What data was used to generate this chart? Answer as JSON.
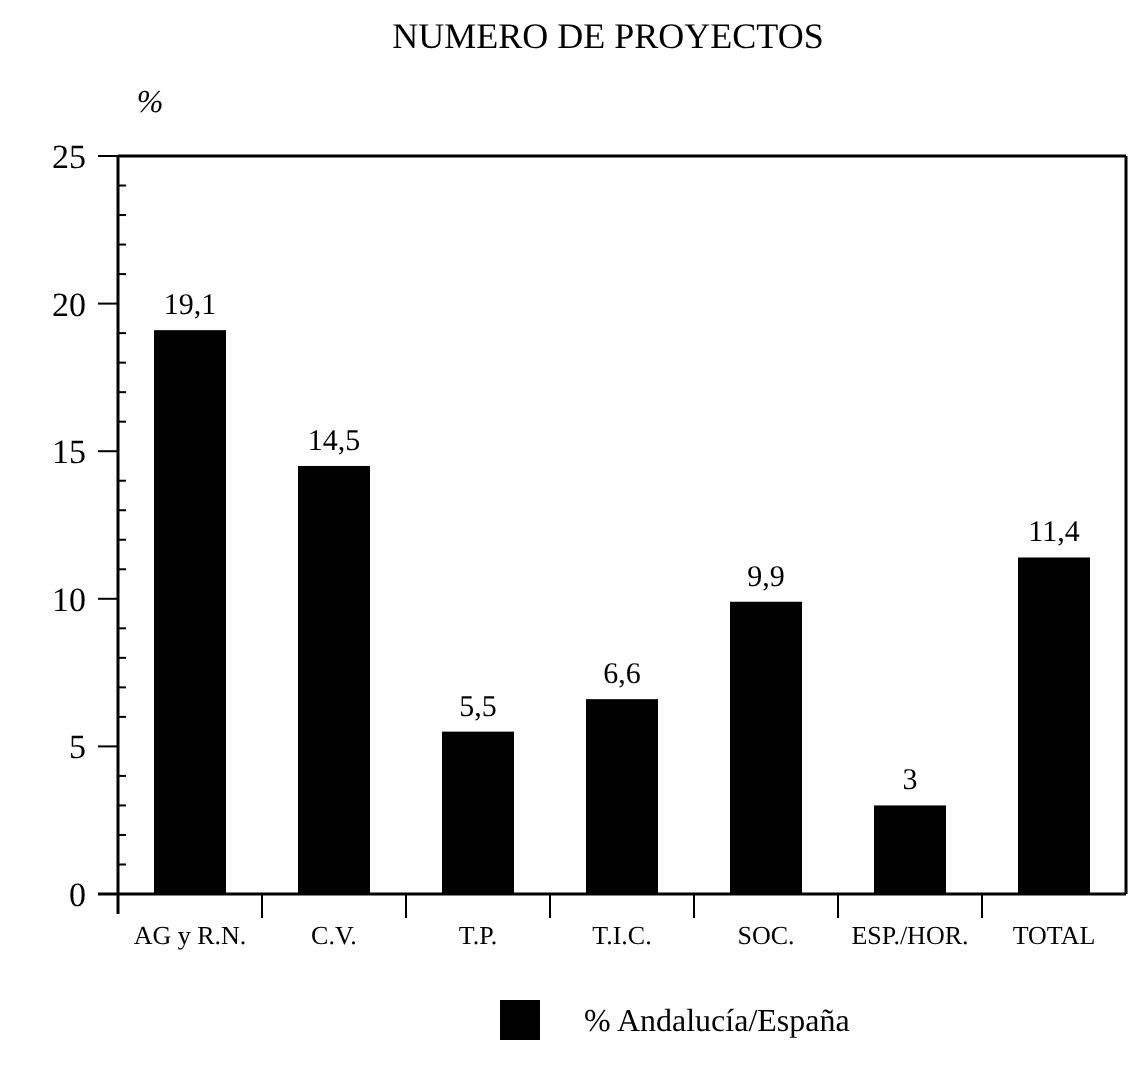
{
  "chart_data": {
    "type": "bar",
    "title": "NUMERO DE PROYECTOS",
    "ylabel": "%",
    "categories": [
      "AG y R.N.",
      "C.V.",
      "T.P.",
      "T.I.C.",
      "SOC.",
      "ESP./HOR.",
      "TOTAL"
    ],
    "series": [
      {
        "name": "% Andalucía/España",
        "color": "#000000",
        "values": [
          19.1,
          14.5,
          5.5,
          6.6,
          9.9,
          3,
          11.4
        ]
      }
    ],
    "ylim": [
      0,
      25
    ],
    "yticks": [
      0,
      {
        "value": 1,
        "label": null
      },
      {
        "value": 2,
        "label": null
      },
      {
        "value": 3,
        "label": null
      },
      {
        "value": 4,
        "label": null
      },
      5,
      {
        "value": 6,
        "label": null
      },
      {
        "value": 7,
        "label": null
      },
      {
        "value": 8,
        "label": null
      },
      {
        "value": 9,
        "label": null
      },
      10,
      {
        "value": 11,
        "label": null
      },
      {
        "value": 12,
        "label": null
      },
      {
        "value": 13,
        "label": null
      },
      {
        "value": 14,
        "label": null
      },
      15,
      {
        "value": 16,
        "label": null
      },
      {
        "value": 17,
        "label": null
      },
      {
        "value": 18,
        "label": null
      },
      {
        "value": 19,
        "label": null
      },
      20,
      {
        "value": 21,
        "label": null
      },
      {
        "value": 22,
        "label": null
      },
      {
        "value": 23,
        "label": null
      },
      {
        "value": 24,
        "label": null
      },
      25
    ],
    "value_labels": [
      "19,1",
      "14,5",
      "5,5",
      "6,6",
      "9,9",
      "3",
      "11,4"
    ],
    "legend": "bottom",
    "grid": false
  }
}
